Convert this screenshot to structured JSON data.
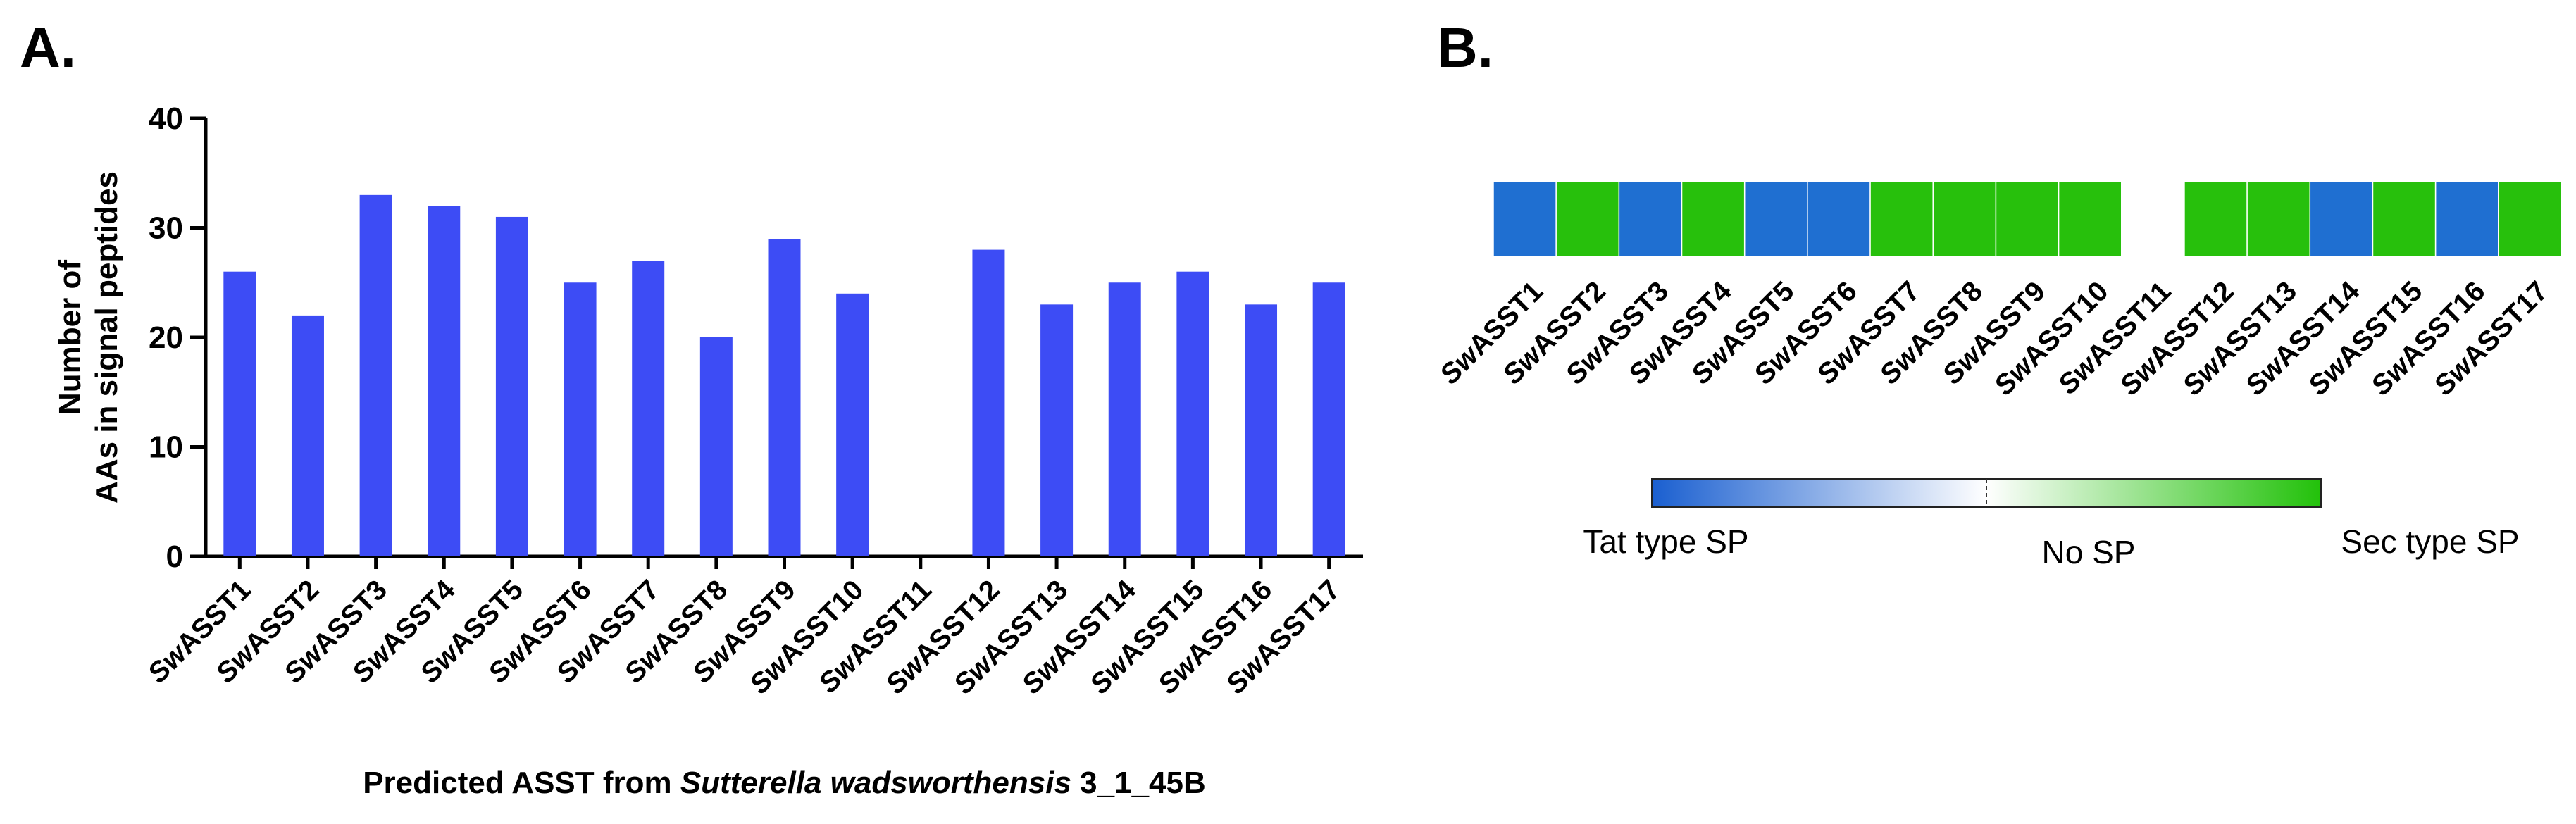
{
  "panels": {
    "a": "A.",
    "b": "B."
  },
  "colors": {
    "bar": "#3d4cf5",
    "tat": "#1f6fd1",
    "none": "#ffffff",
    "sec": "#27c00c"
  },
  "chart_data": [
    {
      "type": "bar",
      "panel": "A.",
      "title": "",
      "categories": [
        "SwASST1",
        "SwASST2",
        "SwASST3",
        "SwASST4",
        "SwASST5",
        "SwASST6",
        "SwASST7",
        "SwASST8",
        "SwASST9",
        "SwASST10",
        "SwASST11",
        "SwASST12",
        "SwASST13",
        "SwASST14",
        "SwASST15",
        "SwASST16",
        "SwASST17"
      ],
      "values": [
        26,
        22,
        33,
        32,
        31,
        25,
        27,
        20,
        29,
        24,
        0,
        28,
        23,
        25,
        26,
        23,
        25
      ],
      "ylabel_lines": [
        "Number of",
        "AAs in signal peptides"
      ],
      "xlabel_parts": [
        "Predicted ASST from ",
        "Sutterella wadsworthensis",
        " 3_1_45B"
      ],
      "ylim": [
        0,
        40
      ],
      "yticks": [
        "0",
        "10",
        "20",
        "30",
        "40"
      ],
      "grid": false,
      "legend": "none"
    },
    {
      "type": "heatmap",
      "panel": "B.",
      "categories": [
        "SwASST1",
        "SwASST2",
        "SwASST3",
        "SwASST4",
        "SwASST5",
        "SwASST6",
        "SwASST7",
        "SwASST8",
        "SwASST9",
        "SwASST10",
        "SwASST11",
        "SwASST12",
        "SwASST13",
        "SwASST14",
        "SwASST15",
        "SwASST16",
        "SwASST17"
      ],
      "values": [
        "Tat",
        "Sec",
        "Tat",
        "Sec",
        "Tat",
        "Tat",
        "Sec",
        "Sec",
        "Sec",
        "Sec",
        "None",
        "Sec",
        "Sec",
        "Tat",
        "Sec",
        "Tat",
        "Sec"
      ],
      "colorbar": {
        "labels": [
          "Tat type SP",
          "No SP",
          "Sec type SP"
        ]
      },
      "legend": "bottom"
    }
  ]
}
